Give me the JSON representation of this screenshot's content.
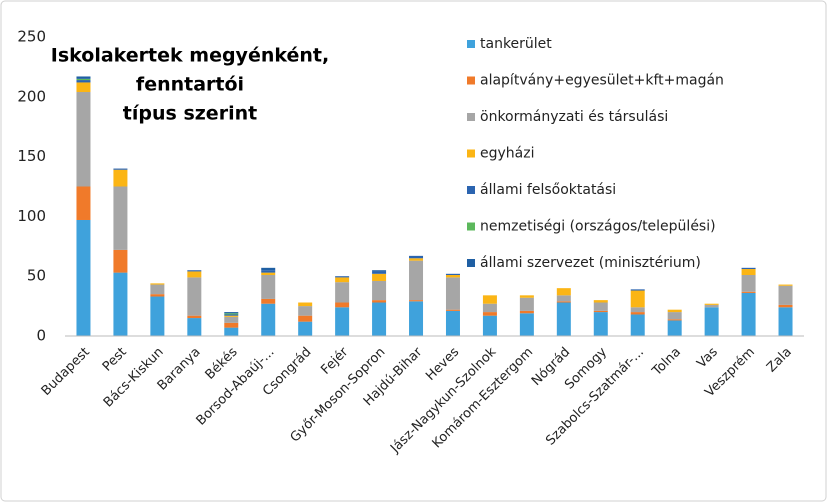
{
  "chart_data": {
    "type": "bar",
    "stacked": true,
    "title": [
      "Iskolakertek megyénként,",
      "fenntartói",
      "típus szerint"
    ],
    "categories": [
      "Budapest",
      "Pest",
      "Bács-Kiskun",
      "Baranya",
      "Békés",
      "Borsod-Abaúj-...",
      "Csongrád",
      "Fejér",
      "Győr-Moson-Sopron",
      "Hajdú-Bihar",
      "Heves",
      "Jász-Nagykun-Szolnok",
      "Komárom-Esztergom",
      "Nógrád",
      "Somogy",
      "Szabolcs-Szatmár-...",
      "Tolna",
      "Vas",
      "Veszprém",
      "Zala"
    ],
    "series": [
      {
        "name": "tankerület",
        "color": "#3fa2dc",
        "values": [
          97,
          53,
          33,
          15,
          7,
          27,
          12,
          24,
          28,
          29,
          21,
          17,
          19,
          28,
          20,
          18,
          13,
          24,
          36,
          24
        ]
      },
      {
        "name": "alapítvány+egyesület+kft+magán",
        "color": "#f07a2a",
        "values": [
          28,
          19,
          2,
          2,
          4,
          4,
          5,
          4,
          2,
          1,
          1,
          3,
          2,
          1,
          1,
          2,
          1,
          0,
          1,
          2
        ]
      },
      {
        "name": "önkormányzati és társulási",
        "color": "#a6a6a6",
        "values": [
          79,
          53,
          8,
          32,
          5,
          20,
          8,
          17,
          16,
          33,
          27,
          7,
          11,
          5,
          7,
          4,
          6,
          2,
          14,
          16
        ]
      },
      {
        "name": "egyházi",
        "color": "#fbb515",
        "values": [
          8,
          14,
          1,
          5,
          1,
          2,
          3,
          4,
          6,
          2,
          2,
          7,
          2,
          6,
          2,
          14,
          2,
          1,
          5,
          1
        ]
      },
      {
        "name": "állami felsőoktatási",
        "color": "#2b64b0",
        "values": [
          2,
          1,
          0,
          1,
          1,
          2,
          0,
          1,
          2,
          2,
          1,
          0,
          0,
          0,
          0,
          1,
          0,
          0,
          1,
          0
        ]
      },
      {
        "name": "nemzetiségi (országos/települési)",
        "color": "#5cb85c",
        "values": [
          1,
          0,
          0,
          0,
          1,
          0,
          0,
          0,
          0,
          0,
          0,
          0,
          0,
          0,
          0,
          0,
          0,
          0,
          0,
          0
        ]
      },
      {
        "name": "állami szervezet (minisztérium)",
        "color": "#1f5fa3",
        "values": [
          2,
          0,
          0,
          0,
          1,
          2,
          0,
          0,
          1,
          0,
          0,
          0,
          0,
          0,
          0,
          0,
          0,
          0,
          0,
          0
        ]
      }
    ],
    "ylim": [
      0,
      250
    ],
    "yticks": [
      0,
      50,
      100,
      150,
      200,
      250
    ],
    "grid": false,
    "legend": "top-right"
  }
}
